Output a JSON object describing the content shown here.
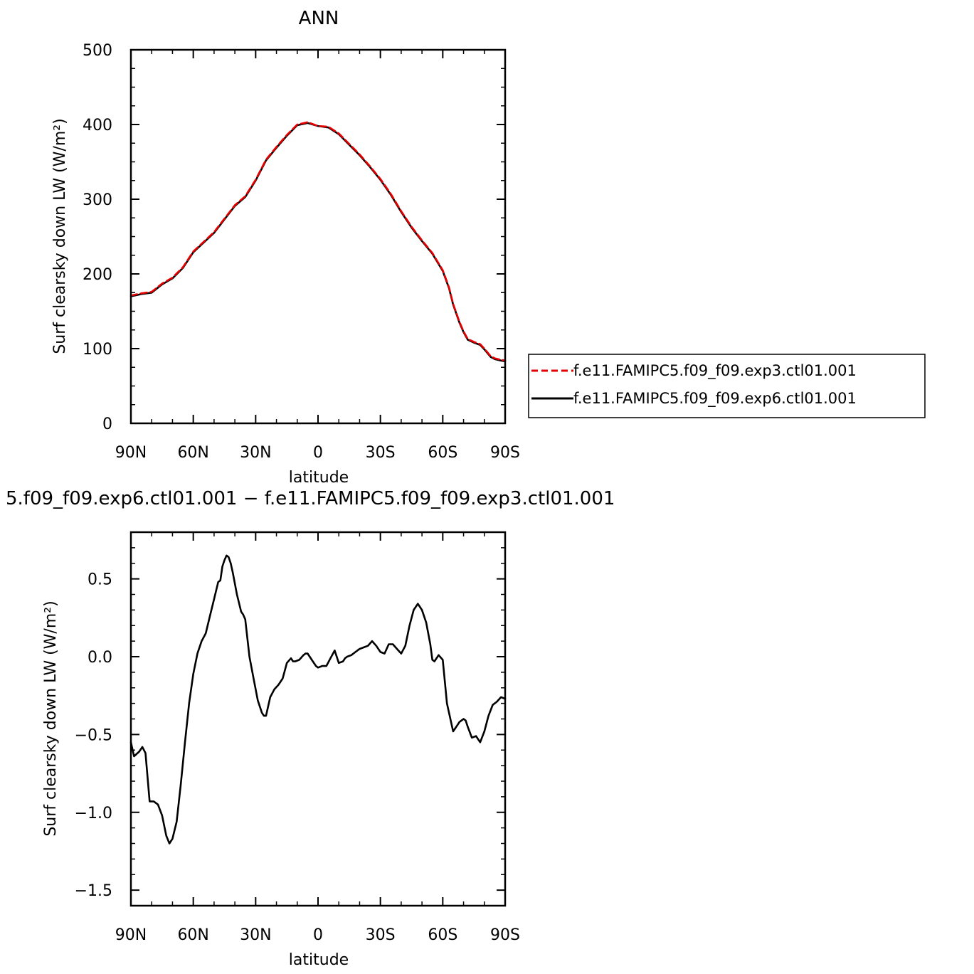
{
  "chart_data": [
    {
      "type": "line",
      "title": "ANN",
      "xlabel": "latitude",
      "ylabel": "Surf clearsky down LW (W/m²)",
      "xlim": [
        -90,
        90
      ],
      "ylim": [
        0,
        500
      ],
      "x_ticks": [
        {
          "value": -90,
          "label": "90N"
        },
        {
          "value": -60,
          "label": "60N"
        },
        {
          "value": -30,
          "label": "30N"
        },
        {
          "value": 0,
          "label": "0"
        },
        {
          "value": 30,
          "label": "30S"
        },
        {
          "value": 60,
          "label": "60S"
        },
        {
          "value": 90,
          "label": "90S"
        }
      ],
      "y_ticks": [
        {
          "value": 0,
          "label": "0"
        },
        {
          "value": 100,
          "label": "100"
        },
        {
          "value": 200,
          "label": "200"
        },
        {
          "value": 300,
          "label": "300"
        },
        {
          "value": 400,
          "label": "400"
        },
        {
          "value": 500,
          "label": "500"
        }
      ],
      "grid": false,
      "legend_position": "right",
      "x": [
        -90,
        -85,
        -80,
        -75,
        -70,
        -65,
        -60,
        -55,
        -50,
        -45,
        -40,
        -35,
        -30,
        -25,
        -20,
        -15,
        -10,
        -5,
        0,
        5,
        10,
        15,
        20,
        25,
        30,
        35,
        40,
        45,
        50,
        55,
        60,
        63,
        65,
        68,
        70,
        72,
        75,
        78,
        80,
        83,
        85,
        88,
        90
      ],
      "series": [
        {
          "name": "f.e11.FAMIPC5.f09_f09.exp3.ctl01.001",
          "color": "#e60000",
          "dash": "dashed",
          "values": [
            171,
            174,
            176,
            187,
            195,
            209,
            230,
            243,
            256,
            274,
            292,
            304,
            326,
            353,
            370,
            386,
            400,
            403,
            398,
            397,
            388,
            374,
            360,
            344,
            327,
            307,
            284,
            263,
            245,
            228,
            205,
            182,
            160,
            136,
            123,
            113,
            109,
            106,
            100,
            90,
            87,
            85,
            84
          ]
        },
        {
          "name": "f.e11.FAMIPC5.f09_f09.exp6.ctl01.001",
          "color": "#000000",
          "dash": "solid",
          "values": [
            170,
            173,
            175,
            186,
            194,
            208,
            229,
            242,
            255,
            273,
            291,
            303,
            325,
            352,
            369,
            385,
            399,
            402,
            398,
            396,
            387,
            373,
            359,
            343,
            326,
            306,
            283,
            262,
            244,
            227,
            204,
            181,
            159,
            135,
            122,
            112,
            108,
            105,
            99,
            89,
            86,
            84,
            83
          ]
        }
      ]
    },
    {
      "type": "line",
      "title": "5.f09_f09.exp6.ctl01.001 − f.e11.FAMIPC5.f09_f09.exp3.ctl01.001",
      "xlabel": "latitude",
      "ylabel": "Surf clearsky down LW (W/m²)",
      "xlim": [
        -90,
        90
      ],
      "ylim": [
        -1.6,
        0.8
      ],
      "x_ticks": [
        {
          "value": -90,
          "label": "90N"
        },
        {
          "value": -60,
          "label": "60N"
        },
        {
          "value": -30,
          "label": "30N"
        },
        {
          "value": 0,
          "label": "0"
        },
        {
          "value": 30,
          "label": "30S"
        },
        {
          "value": 60,
          "label": "60S"
        },
        {
          "value": 90,
          "label": "90S"
        }
      ],
      "y_ticks": [
        {
          "value": -1.5,
          "label": "−1.5"
        },
        {
          "value": -1.0,
          "label": "−1.0"
        },
        {
          "value": -0.5,
          "label": "−0.5"
        },
        {
          "value": 0.0,
          "label": "0.0"
        },
        {
          "value": 0.5,
          "label": "0.5"
        }
      ],
      "grid": false,
      "x": [
        -90,
        -88.5,
        -86,
        -84.5,
        -83,
        -81,
        -79,
        -77,
        -75,
        -73,
        -71.5,
        -70,
        -68,
        -66,
        -64,
        -62,
        -60,
        -58,
        -56,
        -54,
        -52,
        -50,
        -48,
        -47,
        -46,
        -45,
        -44,
        -43,
        -42,
        -41,
        -39,
        -37,
        -36,
        -35,
        -33,
        -31,
        -29,
        -27,
        -26,
        -25,
        -23,
        -21,
        -19,
        -17,
        -15,
        -13,
        -12,
        -11,
        -9,
        -7,
        -6,
        -5,
        -3,
        -1,
        0,
        2,
        4,
        6,
        8,
        10,
        12,
        13,
        14,
        16,
        18,
        20,
        22,
        24,
        26,
        28,
        30,
        32,
        34,
        36,
        38,
        40,
        42,
        44,
        46,
        48,
        50,
        52,
        54,
        55,
        56,
        58,
        60,
        62,
        64,
        65,
        66,
        67,
        68,
        69,
        70,
        71,
        72,
        74,
        76,
        78,
        80,
        82,
        84,
        86,
        88,
        90
      ],
      "series": [
        {
          "name": "",
          "color": "#000000",
          "dash": "solid",
          "values": [
            -0.55,
            -0.64,
            -0.61,
            -0.58,
            -0.62,
            -0.93,
            -0.93,
            -0.95,
            -1.02,
            -1.15,
            -1.2,
            -1.17,
            -1.06,
            -0.82,
            -0.55,
            -0.3,
            -0.11,
            0.02,
            0.1,
            0.15,
            0.26,
            0.37,
            0.48,
            0.49,
            0.58,
            0.62,
            0.65,
            0.64,
            0.6,
            0.54,
            0.4,
            0.29,
            0.27,
            0.24,
            0.0,
            -0.14,
            -0.28,
            -0.36,
            -0.38,
            -0.38,
            -0.26,
            -0.21,
            -0.18,
            -0.14,
            -0.04,
            -0.01,
            -0.03,
            -0.03,
            -0.02,
            0.01,
            0.02,
            0.02,
            -0.02,
            -0.06,
            -0.07,
            -0.06,
            -0.06,
            -0.01,
            0.04,
            -0.04,
            -0.03,
            -0.01,
            0.0,
            0.01,
            0.03,
            0.05,
            0.06,
            0.07,
            0.1,
            0.07,
            0.03,
            0.02,
            0.08,
            0.08,
            0.05,
            0.02,
            0.07,
            0.2,
            0.3,
            0.34,
            0.3,
            0.22,
            0.08,
            -0.02,
            -0.03,
            0.01,
            -0.02,
            -0.3,
            -0.42,
            -0.48,
            -0.46,
            -0.44,
            -0.42,
            -0.41,
            -0.4,
            -0.41,
            -0.45,
            -0.52,
            -0.51,
            -0.55,
            -0.48,
            -0.38,
            -0.31,
            -0.29,
            -0.26,
            -0.27
          ]
        }
      ]
    }
  ]
}
